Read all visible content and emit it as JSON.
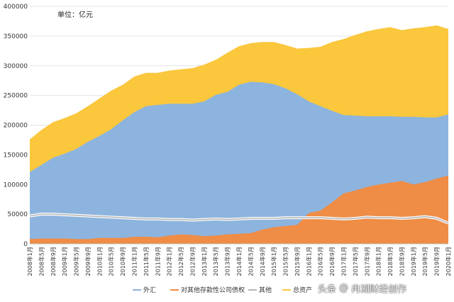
{
  "chart_data": {
    "type": "area",
    "unit_label": "单位：亿元",
    "ylim": [
      0,
      400000
    ],
    "y_ticks": [
      0,
      50000,
      100000,
      150000,
      200000,
      250000,
      300000,
      350000,
      400000
    ],
    "x": [
      "2008年1月",
      "2008年5月",
      "2008年9月",
      "2009年1月",
      "2009年5月",
      "2009年9月",
      "2010年1月",
      "2010年5月",
      "2010年9月",
      "2011年1月",
      "2011年5月",
      "2011年9月",
      "2012年1月",
      "2012年5月",
      "2012年9月",
      "2013年1月",
      "2013年5月",
      "2013年9月",
      "2014年1月",
      "2014年5月",
      "2014年9月",
      "2015年1月",
      "2015年5月",
      "2015年9月",
      "2016年1月",
      "2016年5月",
      "2016年9月",
      "2017年1月",
      "2017年5月",
      "2017年9月",
      "2018年1月",
      "2018年5月",
      "2018年9月",
      "2019年1月",
      "2019年5月",
      "2019年9月",
      "2020年1月"
    ],
    "series": [
      {
        "name": "外汇",
        "color": "#8db4de",
        "values": [
          121000,
          133000,
          145000,
          152000,
          160000,
          172000,
          182000,
          193000,
          208000,
          222000,
          232000,
          234000,
          236000,
          236000,
          236000,
          240000,
          251000,
          256000,
          268000,
          273000,
          272000,
          269000,
          262000,
          252000,
          240000,
          232000,
          224000,
          217000,
          216000,
          215000,
          215000,
          215000,
          214000,
          214000,
          213000,
          213000,
          218000
        ]
      },
      {
        "name": "对其他存款性公司债权",
        "color": "#ef8c45",
        "values": [
          8000,
          9000,
          9000,
          9000,
          8000,
          8000,
          10000,
          10000,
          10000,
          12000,
          12000,
          11000,
          14000,
          16000,
          15000,
          13000,
          14000,
          16000,
          17000,
          18000,
          24000,
          28000,
          30000,
          32000,
          52000,
          56000,
          70000,
          85000,
          90000,
          96000,
          100000,
          103000,
          106000,
          100000,
          104000,
          110000,
          115000
        ]
      },
      {
        "name": "其他",
        "color": "#b7b7b7",
        "values": [
          47000,
          50000,
          50000,
          49000,
          48000,
          47000,
          46000,
          45000,
          44000,
          43000,
          42000,
          42000,
          41000,
          41000,
          40000,
          41000,
          42000,
          41000,
          42000,
          43000,
          43000,
          43000,
          44000,
          44000,
          44000,
          44000,
          43000,
          42000,
          43000,
          45000,
          44000,
          44000,
          43000,
          44000,
          46000,
          43000,
          35000
        ]
      },
      {
        "name": "总资产",
        "color": "#fac73d",
        "values": [
          176000,
          192000,
          205000,
          212000,
          220000,
          232000,
          245000,
          258000,
          268000,
          282000,
          288000,
          288000,
          292000,
          294000,
          296000,
          302000,
          310000,
          322000,
          333000,
          338000,
          340000,
          340000,
          335000,
          329000,
          330000,
          332000,
          340000,
          345000,
          352000,
          358000,
          362000,
          365000,
          360000,
          363000,
          365000,
          368000,
          362000
        ]
      }
    ]
  },
  "watermark": {
    "platform": "头条",
    "at": "@",
    "author": "冉湖财经创作"
  }
}
